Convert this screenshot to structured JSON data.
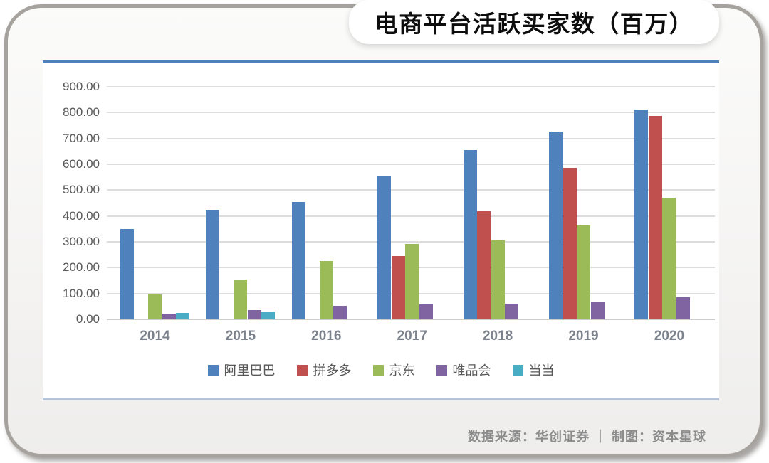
{
  "footer": {
    "text": "数据来源：华创证券 ｜ 制图：资本星球"
  },
  "chart_data": {
    "type": "bar",
    "title": "电商平台活跃买家数（百万）",
    "categories": [
      "2014",
      "2015",
      "2016",
      "2017",
      "2018",
      "2019",
      "2020"
    ],
    "series": [
      {
        "id": "alibaba",
        "name": "阿里巴巴",
        "color": "#4F81BD",
        "values": [
          350,
          423,
          454,
          552,
          654,
          726,
          811
        ]
      },
      {
        "id": "pinduoduo",
        "name": "拼多多",
        "color": "#C0504D",
        "values": [
          null,
          null,
          null,
          245,
          419,
          585,
          788
        ]
      },
      {
        "id": "jd",
        "name": "京东",
        "color": "#9BBB59",
        "values": [
          97,
          155,
          227,
          292,
          305,
          362,
          472
        ]
      },
      {
        "id": "vipshop",
        "name": "唯品会",
        "color": "#8064A2",
        "values": [
          23,
          37,
          52,
          58,
          61,
          69,
          84
        ]
      },
      {
        "id": "dangdang",
        "name": "当当",
        "color": "#4BACC6",
        "values": [
          25,
          29,
          null,
          null,
          null,
          null,
          null
        ]
      }
    ],
    "ylim": [
      0,
      900
    ],
    "ytick_step": 100,
    "yticks": [
      "0.00",
      "100.00",
      "200.00",
      "300.00",
      "400.00",
      "500.00",
      "600.00",
      "700.00",
      "800.00",
      "900.00"
    ],
    "grid": true,
    "legend_position": "bottom"
  }
}
